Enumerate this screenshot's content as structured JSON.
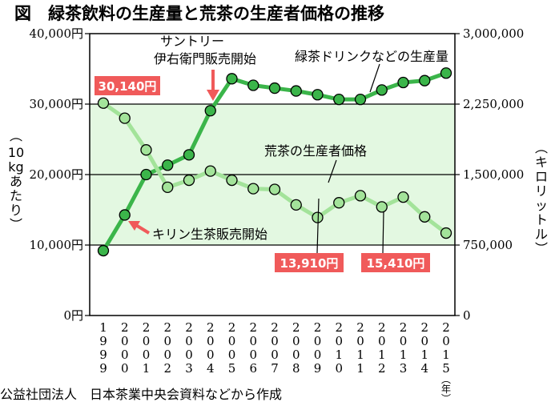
{
  "chart_data": {
    "type": "line",
    "title": "図　緑茶飲料の生産量と荒茶の生産者価格の推移",
    "source": "公益社団法人　日本茶業中央会資料などから作成",
    "x": [
      "1999",
      "2000",
      "2001",
      "2002",
      "2003",
      "2004",
      "2005",
      "2006",
      "2007",
      "2008",
      "2009",
      "2010",
      "2011",
      "2012",
      "2013",
      "2014",
      "2015"
    ],
    "x_unit": "（年）",
    "left_axis": {
      "label": "（10kgあたり）",
      "range": [
        0,
        40000
      ],
      "ticks": [
        0,
        10000,
        20000,
        30000,
        40000
      ],
      "tick_labels": [
        "0円",
        "10,000円",
        "20,000円",
        "30,000円",
        "40,000円"
      ]
    },
    "right_axis": {
      "label": "（キロリットル）",
      "range": [
        0,
        3000000
      ],
      "ticks": [
        0,
        750000,
        1500000,
        2250000,
        3000000
      ],
      "tick_labels": [
        "0",
        "750,000",
        "1,500,000",
        "2,250,000",
        "3,000,000"
      ]
    },
    "band": {
      "from": 10000,
      "to": 30000
    },
    "series": [
      {
        "name": "緑茶ドリンクなどの生産量",
        "axis": "right",
        "color": "#3bb54a",
        "values": [
          690000,
          1070000,
          1500000,
          1600000,
          1710000,
          2180000,
          2520000,
          2450000,
          2420000,
          2390000,
          2350000,
          2300000,
          2300000,
          2400000,
          2480000,
          2500000,
          2580000
        ]
      },
      {
        "name": "荒茶の生産者価格",
        "axis": "left",
        "color": "#a3e39a",
        "values": [
          30140,
          28000,
          23500,
          18200,
          19200,
          20500,
          19200,
          18000,
          17900,
          15700,
          13910,
          16000,
          17000,
          15410,
          16800,
          14000,
          11700
        ]
      }
    ],
    "annotations": [
      {
        "text": "サントリー",
        "text2": "伊右衛門販売開始",
        "x": "2004",
        "series": 0
      },
      {
        "text": "キリン生茶販売開始",
        "x": "2000",
        "series": 0
      }
    ],
    "callouts": [
      {
        "label": "30,140円",
        "x": "1999",
        "series": 1
      },
      {
        "label": "13,910円",
        "x": "2009",
        "series": 1
      },
      {
        "label": "15,410円",
        "x": "2012",
        "series": 1
      }
    ]
  }
}
